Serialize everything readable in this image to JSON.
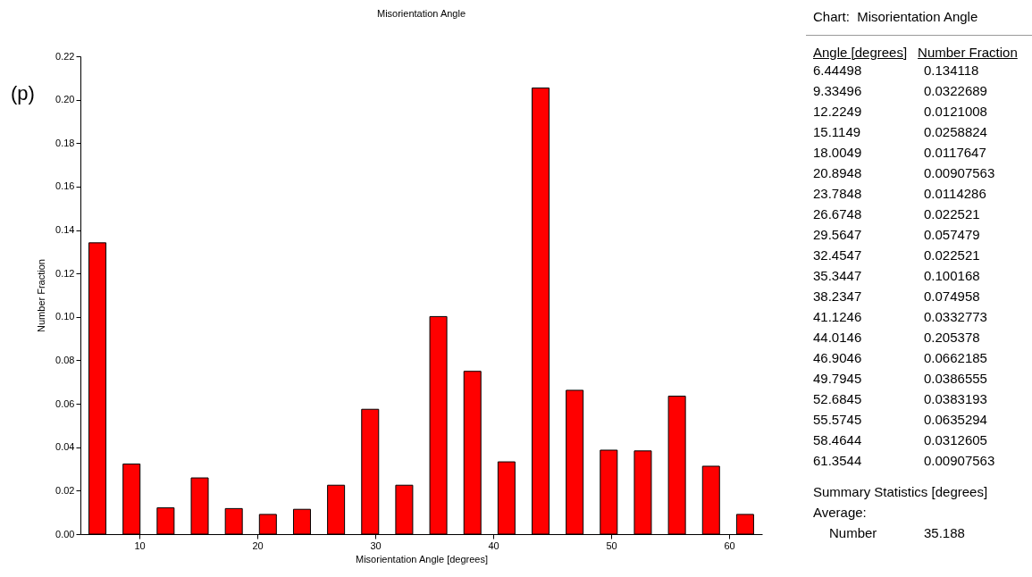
{
  "chart_data": [
    {
      "type": "bar",
      "title": "Misorientation Angle",
      "xlabel": "Misorientation Angle [degrees]",
      "ylabel": "Number Fraction",
      "x": [
        6.44498,
        9.33496,
        12.2249,
        15.1149,
        18.0049,
        20.8948,
        23.7848,
        26.6748,
        29.5647,
        32.4547,
        35.3447,
        38.2347,
        41.1246,
        44.0146,
        46.9046,
        49.7945,
        52.6845,
        55.5745,
        58.4644,
        61.3544
      ],
      "values": [
        0.134118,
        0.0322689,
        0.0121008,
        0.0258824,
        0.0117647,
        0.00907563,
        0.0114286,
        0.022521,
        0.057479,
        0.022521,
        0.100168,
        0.074958,
        0.0332773,
        0.205378,
        0.0662185,
        0.0386555,
        0.0383193,
        0.0635294,
        0.0312605,
        0.00907563
      ],
      "color": "#ff0000",
      "xlim": [
        5,
        62.8
      ],
      "xticks": [
        10,
        20,
        30,
        40,
        50,
        60
      ],
      "ylim": [
        0,
        0.22
      ],
      "yticks": [
        {
          "value": 0,
          "label": "0.00"
        },
        {
          "value": 0.02,
          "label": "0.02"
        },
        {
          "value": 0.04,
          "label": "0.04"
        },
        {
          "value": 0.06,
          "label": "0.06"
        },
        {
          "value": 0.08,
          "label": "0.08"
        },
        {
          "value": 0.1,
          "label": "0.10"
        },
        {
          "value": 0.12,
          "label": "0.12"
        },
        {
          "value": 0.14,
          "label": "0.14"
        },
        {
          "value": 0.16,
          "label": "0.16"
        },
        {
          "value": 0.18,
          "label": "0.18"
        },
        {
          "value": 0.2,
          "label": "0.20"
        },
        {
          "value": 0.22,
          "label": "0.22"
        }
      ],
      "grid": false,
      "annotations": [
        "(p)"
      ]
    },
    {
      "type": "other",
      "title": "Chart:  Misorientation Angle",
      "annotations": [
        "Angle [degrees]",
        "Number Fraction",
        "6.44498",
        "0.134118",
        "9.33496",
        "0.0322689",
        "12.2249",
        "0.0121008",
        "15.1149",
        "0.0258824",
        "18.0049",
        "0.0117647",
        "20.8948",
        "0.00907563",
        "23.7848",
        "0.0114286",
        "26.6748",
        "0.022521",
        "29.5647",
        "0.057479",
        "32.4547",
        "0.022521",
        "35.3447",
        "0.100168",
        "38.2347",
        "0.074958",
        "41.1246",
        "0.0332773",
        "44.0146",
        "0.205378",
        "46.9046",
        "0.0662185",
        "49.7945",
        "0.0386555",
        "52.6845",
        "0.0383193",
        "55.5745",
        "0.0635294",
        "58.4644",
        "0.0312605",
        "61.3544",
        "0.00907563",
        "Summary Statistics [degrees]",
        "Average:",
        "Number",
        "35.188"
      ]
    }
  ]
}
